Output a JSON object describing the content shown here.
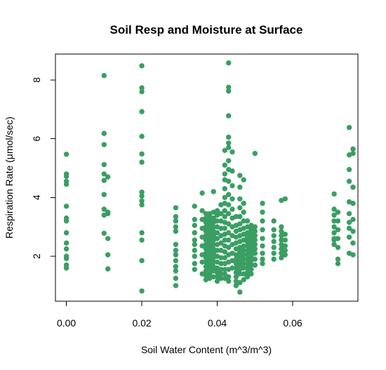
{
  "chart_data": {
    "type": "scatter",
    "title": "Soil Resp and Moisture at Surface",
    "xlabel": "Soil Water Content (m^3/m^3)",
    "ylabel": "Respiration Rate (μmol/sec)",
    "xlim": [
      -0.0029,
      0.0773
    ],
    "ylim": [
      0.47,
      8.88
    ],
    "x_ticks": [
      0.0,
      0.02,
      0.04,
      0.06
    ],
    "x_tick_labels": [
      "0.00",
      "0.02",
      "0.04",
      "0.06"
    ],
    "y_ticks": [
      2,
      4,
      6,
      8
    ],
    "y_tick_labels": [
      "2",
      "4",
      "6",
      "8"
    ],
    "grid": false,
    "legend": "none",
    "point_color": "#3a9e63",
    "series": [
      {
        "x": [
          0.0,
          0.0,
          0.0,
          0.0,
          0.0,
          0.0,
          0.0,
          0.0,
          0.0,
          0.0,
          0.0,
          0.0,
          0.0,
          0.0,
          0.0,
          0.01,
          0.01,
          0.01,
          0.01,
          0.01,
          0.01,
          0.01,
          0.01,
          0.01,
          0.01,
          0.011,
          0.011,
          0.011,
          0.011,
          0.011,
          0.011,
          0.02,
          0.02,
          0.02,
          0.02,
          0.02,
          0.02,
          0.02,
          0.02,
          0.02,
          0.02,
          0.02,
          0.02,
          0.02,
          0.02,
          0.02,
          0.029,
          0.029,
          0.029,
          0.029,
          0.029,
          0.029,
          0.029,
          0.029,
          0.029,
          0.029,
          0.029,
          0.029,
          0.029,
          0.034,
          0.034,
          0.034,
          0.034,
          0.034,
          0.034,
          0.034,
          0.034,
          0.034,
          0.034,
          0.036,
          0.036,
          0.036,
          0.036,
          0.036,
          0.036,
          0.036,
          0.036,
          0.036,
          0.037,
          0.037,
          0.037,
          0.037,
          0.037,
          0.037,
          0.037,
          0.037,
          0.037,
          0.037,
          0.037,
          0.037,
          0.037,
          0.037,
          0.037,
          0.037,
          0.038,
          0.038,
          0.038,
          0.038,
          0.038,
          0.038,
          0.038,
          0.038,
          0.038,
          0.038,
          0.038,
          0.038,
          0.038,
          0.038,
          0.038,
          0.038,
          0.039,
          0.039,
          0.039,
          0.039,
          0.039,
          0.039,
          0.039,
          0.039,
          0.039,
          0.039,
          0.039,
          0.039,
          0.039,
          0.039,
          0.039,
          0.039,
          0.04,
          0.04,
          0.04,
          0.04,
          0.04,
          0.04,
          0.04,
          0.04,
          0.04,
          0.04,
          0.04,
          0.04,
          0.04,
          0.04,
          0.041,
          0.041,
          0.041,
          0.041,
          0.041,
          0.041,
          0.041,
          0.041,
          0.041,
          0.041,
          0.041,
          0.041,
          0.042,
          0.042,
          0.042,
          0.042,
          0.042,
          0.042,
          0.042,
          0.042,
          0.042,
          0.042,
          0.042,
          0.042,
          0.042,
          0.042,
          0.042,
          0.042,
          0.042,
          0.042,
          0.042,
          0.042,
          0.043,
          0.043,
          0.043,
          0.043,
          0.043,
          0.043,
          0.043,
          0.043,
          0.043,
          0.043,
          0.043,
          0.043,
          0.043,
          0.043,
          0.043,
          0.043,
          0.043,
          0.043,
          0.043,
          0.043,
          0.043,
          0.043,
          0.044,
          0.044,
          0.044,
          0.044,
          0.044,
          0.044,
          0.044,
          0.044,
          0.044,
          0.044,
          0.044,
          0.044,
          0.045,
          0.045,
          0.045,
          0.045,
          0.045,
          0.045,
          0.045,
          0.045,
          0.045,
          0.045,
          0.045,
          0.045,
          0.045,
          0.045,
          0.046,
          0.046,
          0.046,
          0.046,
          0.046,
          0.046,
          0.046,
          0.046,
          0.046,
          0.046,
          0.046,
          0.046,
          0.046,
          0.046,
          0.046,
          0.046,
          0.046,
          0.046,
          0.047,
          0.047,
          0.047,
          0.047,
          0.047,
          0.047,
          0.047,
          0.047,
          0.047,
          0.047,
          0.047,
          0.047,
          0.047,
          0.047,
          0.047,
          0.048,
          0.048,
          0.048,
          0.048,
          0.048,
          0.048,
          0.048,
          0.048,
          0.048,
          0.048,
          0.048,
          0.048,
          0.048,
          0.049,
          0.049,
          0.049,
          0.049,
          0.049,
          0.049,
          0.049,
          0.049,
          0.049,
          0.049,
          0.049,
          0.049,
          0.05,
          0.05,
          0.05,
          0.05,
          0.05,
          0.05,
          0.05,
          0.05,
          0.05,
          0.05,
          0.052,
          0.052,
          0.052,
          0.052,
          0.052,
          0.052,
          0.052,
          0.052,
          0.052,
          0.055,
          0.055,
          0.055,
          0.055,
          0.055,
          0.055,
          0.055,
          0.057,
          0.057,
          0.057,
          0.057,
          0.057,
          0.057,
          0.057,
          0.057,
          0.057,
          0.058,
          0.058,
          0.058,
          0.058,
          0.058,
          0.058,
          0.071,
          0.071,
          0.071,
          0.071,
          0.071,
          0.071,
          0.071,
          0.071,
          0.071,
          0.072,
          0.072,
          0.072,
          0.072,
          0.072,
          0.072,
          0.072,
          0.075,
          0.075,
          0.075,
          0.075,
          0.075,
          0.075,
          0.075,
          0.075,
          0.075,
          0.075,
          0.076,
          0.076,
          0.076,
          0.076,
          0.076,
          0.076,
          0.076,
          0.076
        ],
        "y": [
          5.47,
          4.8,
          4.72,
          4.55,
          4.45,
          3.7,
          3.3,
          3.2,
          2.8,
          2.45,
          2.25,
          2.0,
          1.92,
          1.7,
          1.6,
          8.15,
          6.18,
          5.8,
          5.12,
          4.8,
          4.58,
          4.1,
          3.6,
          3.4,
          2.78,
          4.7,
          3.5,
          3.45,
          2.6,
          2.05,
          1.57,
          8.48,
          7.73,
          7.6,
          6.92,
          6.08,
          5.48,
          5.2,
          4.18,
          4.05,
          3.88,
          3.75,
          2.8,
          2.55,
          1.85,
          0.82,
          3.65,
          3.35,
          3.2,
          3.0,
          2.85,
          2.4,
          2.2,
          2.05,
          1.85,
          1.65,
          1.5,
          1.25,
          1.0,
          3.7,
          3.25,
          3.05,
          2.8,
          2.55,
          2.4,
          2.2,
          2.0,
          1.75,
          1.55,
          4.15,
          3.55,
          3.25,
          2.95,
          2.65,
          2.35,
          2.05,
          1.8,
          1.4,
          3.45,
          3.3,
          3.15,
          3.0,
          2.85,
          2.7,
          2.55,
          2.4,
          2.25,
          2.1,
          1.95,
          1.8,
          1.65,
          1.5,
          1.35,
          1.2,
          3.45,
          3.35,
          3.2,
          3.05,
          2.9,
          2.75,
          2.6,
          2.45,
          2.3,
          2.15,
          2.0,
          1.85,
          1.7,
          1.55,
          1.4,
          1.25,
          4.2,
          3.5,
          3.3,
          3.15,
          3.0,
          2.85,
          2.7,
          2.55,
          2.4,
          2.25,
          2.1,
          1.95,
          1.8,
          1.65,
          1.5,
          1.3,
          3.55,
          3.4,
          3.2,
          3.0,
          2.8,
          2.6,
          2.4,
          2.2,
          2.0,
          1.8,
          1.6,
          1.45,
          1.3,
          1.15,
          3.75,
          3.45,
          3.2,
          2.95,
          2.7,
          2.45,
          2.2,
          1.95,
          1.75,
          1.55,
          1.4,
          1.25,
          5.6,
          5.1,
          4.8,
          4.6,
          4.3,
          4.0,
          3.8,
          3.55,
          3.35,
          3.15,
          2.95,
          2.75,
          2.55,
          2.35,
          2.15,
          1.95,
          1.75,
          1.55,
          1.4,
          1.25,
          8.58,
          7.75,
          7.62,
          6.78,
          6.05,
          5.85,
          5.7,
          5.25,
          4.95,
          4.55,
          4.1,
          3.75,
          3.45,
          3.1,
          2.8,
          2.55,
          2.3,
          2.05,
          1.8,
          1.55,
          1.3,
          1.15,
          5.55,
          4.9,
          4.4,
          3.95,
          3.6,
          3.3,
          3.0,
          2.7,
          2.4,
          2.1,
          1.85,
          1.6,
          3.35,
          3.05,
          2.85,
          2.65,
          2.45,
          2.25,
          2.05,
          1.9,
          1.75,
          1.6,
          1.45,
          1.3,
          1.15,
          1.0,
          4.75,
          4.35,
          3.95,
          3.65,
          3.35,
          3.1,
          2.9,
          2.7,
          2.5,
          2.3,
          2.15,
          2.0,
          1.85,
          1.7,
          1.55,
          1.4,
          1.1,
          0.78,
          4.6,
          3.8,
          3.5,
          3.2,
          2.95,
          2.75,
          2.55,
          2.35,
          2.2,
          2.05,
          1.9,
          1.75,
          1.6,
          1.4,
          1.2,
          3.2,
          3.0,
          2.8,
          2.65,
          2.5,
          2.35,
          2.2,
          2.05,
          1.9,
          1.75,
          1.6,
          1.45,
          1.3,
          3.05,
          2.9,
          2.75,
          2.6,
          2.45,
          2.3,
          2.15,
          2.0,
          1.85,
          1.7,
          1.55,
          1.4,
          5.5,
          3.0,
          2.85,
          2.7,
          2.55,
          2.4,
          2.25,
          2.1,
          1.9,
          1.7,
          3.8,
          3.5,
          3.2,
          2.9,
          2.6,
          2.35,
          2.1,
          1.9,
          1.75,
          3.2,
          2.9,
          2.7,
          2.5,
          2.3,
          2.1,
          1.9,
          3.9,
          3.0,
          2.85,
          2.7,
          2.55,
          2.4,
          2.25,
          2.1,
          1.95,
          3.95,
          2.75,
          2.55,
          2.35,
          2.2,
          2.05,
          4.12,
          3.6,
          3.4,
          3.2,
          3.0,
          2.8,
          2.6,
          2.4,
          2.55,
          3.5,
          3.2,
          2.9,
          2.6,
          2.3,
          1.9,
          1.75,
          6.38,
          5.45,
          4.95,
          4.55,
          3.85,
          3.45,
          3.15,
          2.95,
          2.65,
          2.1,
          5.65,
          5.5,
          4.35,
          3.8,
          3.25,
          2.85,
          2.45,
          2.05
        ]
      }
    ]
  }
}
